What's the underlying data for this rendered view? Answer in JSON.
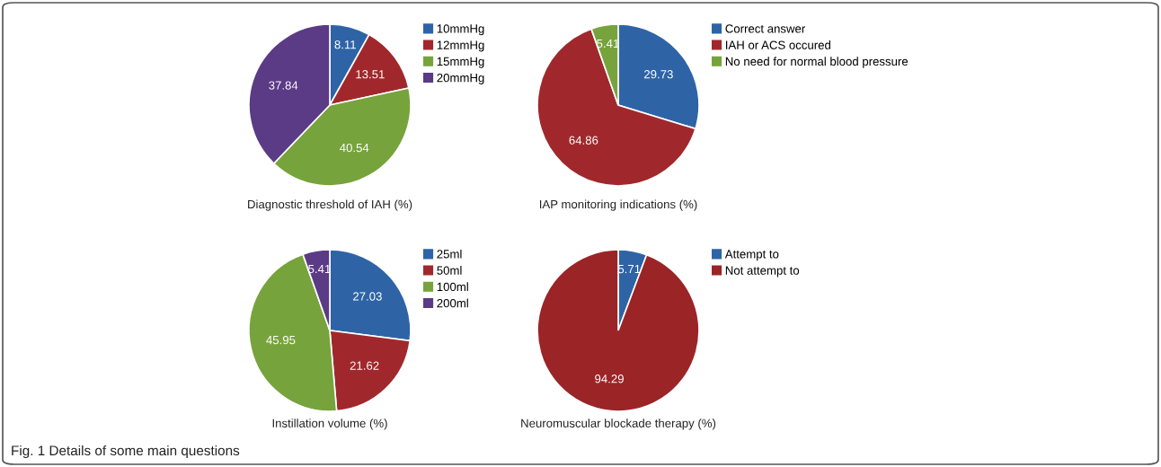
{
  "chart_data": [
    {
      "type": "pie",
      "title": "Diagnostic threshold of IAH (%)",
      "categories": [
        "10mmHg",
        "12mmHg",
        "15mmHg",
        "20mmHg"
      ],
      "values": [
        8.11,
        13.51,
        40.54,
        37.84
      ],
      "colors": [
        "#2e64a6",
        "#a0282c",
        "#77a33c",
        "#5b3a86"
      ],
      "data_labels": true,
      "legend": "right"
    },
    {
      "type": "pie",
      "title": "IAP monitoring indications (%)",
      "categories": [
        "Correct answer",
        "IAH or ACS occured",
        "No need for normal blood pressure"
      ],
      "values": [
        29.73,
        64.86,
        5.41
      ],
      "colors": [
        "#2e64a6",
        "#a0282c",
        "#77a33c"
      ],
      "data_labels": true,
      "legend": "right"
    },
    {
      "type": "pie",
      "title": "Instillation volume (%)",
      "categories": [
        "25ml",
        "50ml",
        "100ml",
        "200ml"
      ],
      "values": [
        27.03,
        21.62,
        45.95,
        5.41
      ],
      "colors": [
        "#2e64a6",
        "#a0282c",
        "#77a33c",
        "#5b3a86"
      ],
      "data_labels": true,
      "legend": "right"
    },
    {
      "type": "pie",
      "title": "Neuromuscular blockade therapy (%)",
      "categories": [
        "Attempt to",
        "Not attempt to"
      ],
      "values": [
        5.71,
        94.29
      ],
      "colors": [
        "#2e64a6",
        "#9b2427"
      ],
      "data_labels": true,
      "legend": "right",
      "annotations": [
        "Fig. 1 Details of some main questions"
      ]
    }
  ]
}
